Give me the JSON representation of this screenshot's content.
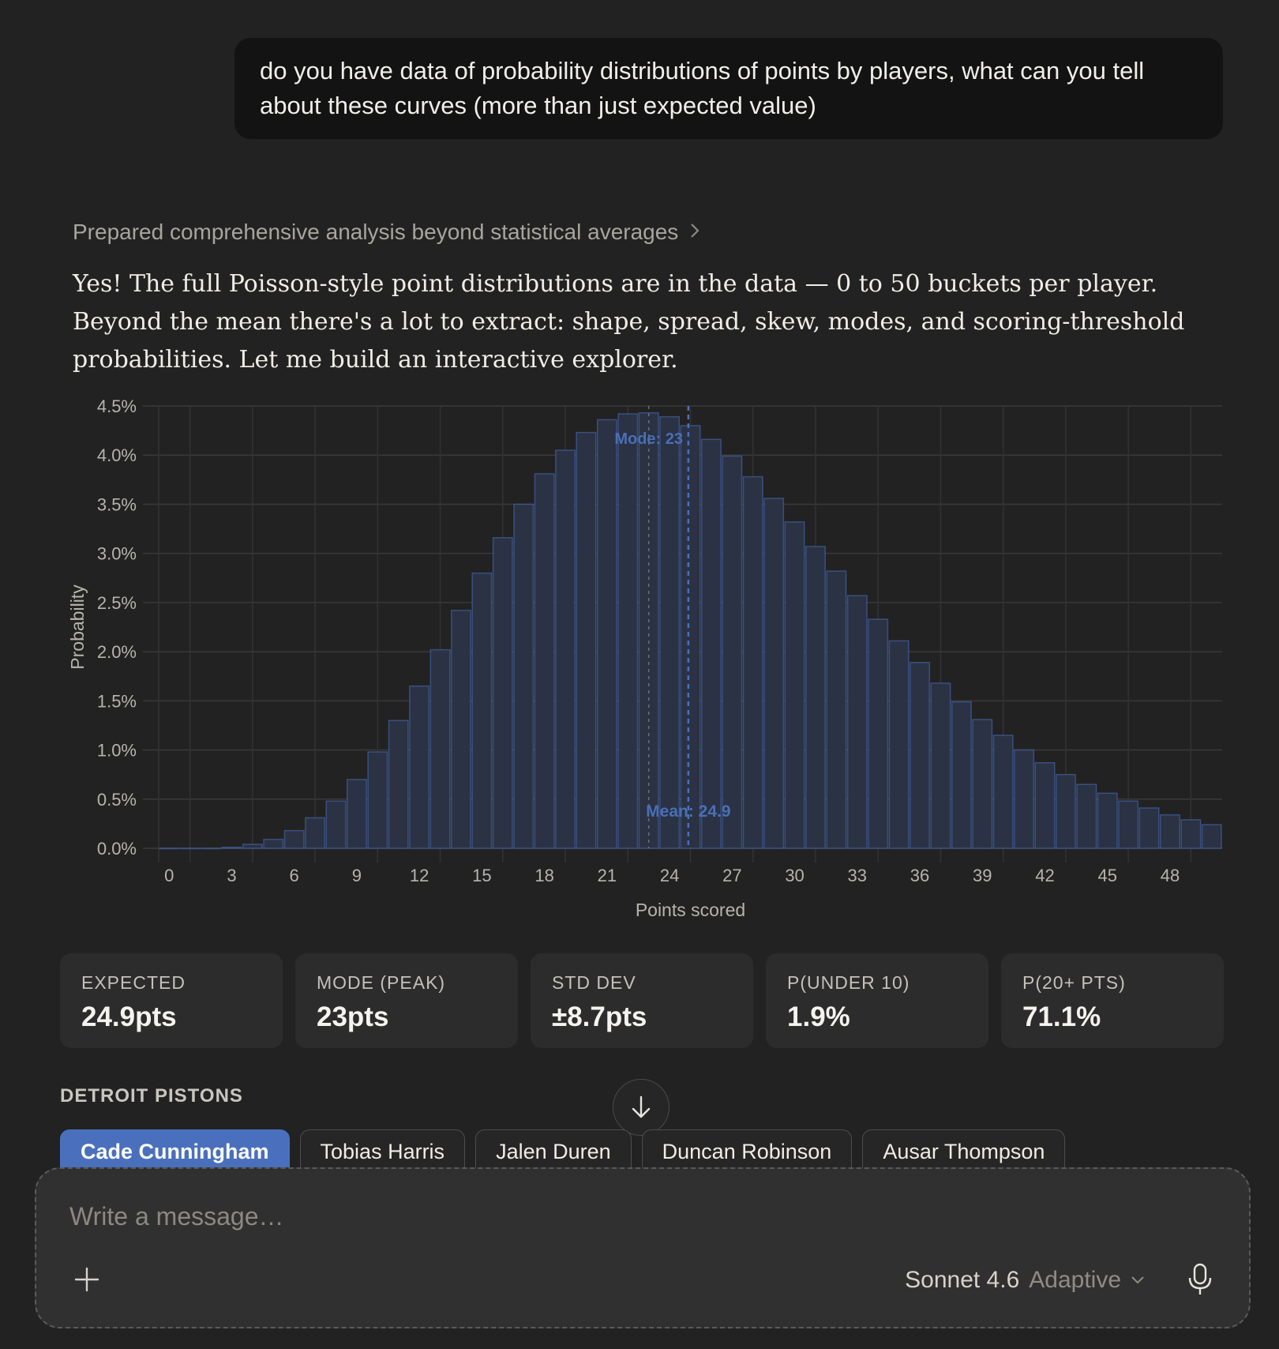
{
  "user_message": "do you have data of probability distributions of points by players, what can you tell about these curves (more than just expected value)",
  "thinking_summary": "Prepared comprehensive analysis beyond statistical averages",
  "answer_text": "Yes! The full Poisson-style point distributions are in the data — 0 to 50 buckets per player. Beyond the mean there's a lot to extract: shape, spread, skew, modes, and scoring-threshold probabilities. Let me build an interactive explorer.",
  "chart_data": {
    "type": "bar",
    "xlabel": "Points scored",
    "ylabel": "Probability",
    "x": [
      0,
      1,
      2,
      3,
      4,
      5,
      6,
      7,
      8,
      9,
      10,
      11,
      12,
      13,
      14,
      15,
      16,
      17,
      18,
      19,
      20,
      21,
      22,
      23,
      24,
      25,
      26,
      27,
      28,
      29,
      30,
      31,
      32,
      33,
      34,
      35,
      36,
      37,
      38,
      39,
      40,
      41,
      42,
      43,
      44,
      45,
      46,
      47,
      48,
      49,
      50
    ],
    "values": [
      0.0,
      0.0,
      0.0,
      0.01,
      0.04,
      0.09,
      0.18,
      0.31,
      0.48,
      0.7,
      0.98,
      1.3,
      1.65,
      2.02,
      2.42,
      2.8,
      3.16,
      3.5,
      3.81,
      4.05,
      4.23,
      4.36,
      4.42,
      4.43,
      4.39,
      4.3,
      4.16,
      3.99,
      3.78,
      3.56,
      3.32,
      3.07,
      2.82,
      2.57,
      2.33,
      2.11,
      1.89,
      1.68,
      1.49,
      1.31,
      1.15,
      1.0,
      0.87,
      0.75,
      0.65,
      0.56,
      0.48,
      0.41,
      0.34,
      0.29,
      0.24
    ],
    "ylim": [
      0,
      4.5
    ],
    "y_ticks": [
      "0.0%",
      "0.5%",
      "1.0%",
      "1.5%",
      "2.0%",
      "2.5%",
      "3.0%",
      "3.5%",
      "4.0%",
      "4.5%"
    ],
    "y_tick_values": [
      0,
      0.5,
      1.0,
      1.5,
      2.0,
      2.5,
      3.0,
      3.5,
      4.0,
      4.5
    ],
    "x_ticks": [
      0,
      3,
      6,
      9,
      12,
      15,
      18,
      21,
      24,
      27,
      30,
      33,
      36,
      39,
      42,
      45,
      48
    ],
    "mode_line": {
      "x": 23,
      "label": "Mode: 23"
    },
    "mean_line": {
      "x": 24.9,
      "label": "Mean: 24.9"
    },
    "grid": true,
    "bar_color": "#4a70bd"
  },
  "stats": [
    {
      "label": "EXPECTED",
      "value": "24.9pts"
    },
    {
      "label": "MODE (PEAK)",
      "value": "23pts"
    },
    {
      "label": "STD DEV",
      "value": "±8.7pts"
    },
    {
      "label": "P(UNDER 10)",
      "value": "1.9%"
    },
    {
      "label": "P(20+ PTS)",
      "value": "71.1%"
    }
  ],
  "team_label": "DETROIT PISTONS",
  "players": [
    {
      "name": "Cade Cunningham",
      "active": true
    },
    {
      "name": "Tobias Harris",
      "active": false
    },
    {
      "name": "Jalen Duren",
      "active": false
    },
    {
      "name": "Duncan Robinson",
      "active": false
    },
    {
      "name": "Ausar Thompson",
      "active": false
    }
  ],
  "composer": {
    "placeholder": "Write a message…",
    "model_name": "Sonnet 4.6",
    "model_mode": "Adaptive"
  },
  "icons": {
    "thinking_chevron": "chevron-right-icon",
    "scroll": "arrow-down-icon",
    "attach": "plus-icon",
    "model_dropdown": "chevron-down-icon",
    "voice": "microphone-icon"
  }
}
